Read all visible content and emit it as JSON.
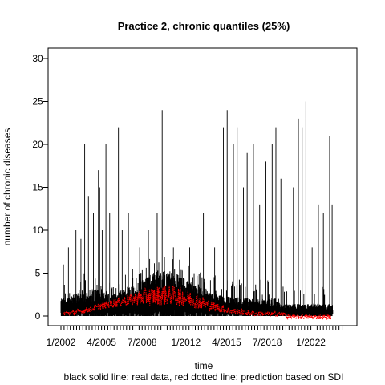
{
  "chart_data": {
    "type": "line",
    "title": "Practice 2, chronic quantiles (25%)",
    "xlabel": "time",
    "ylabel": "number of chronic diseases",
    "caption": "black solid line: real data, red dotted line: prediction based on SDI",
    "ylim": [
      0,
      30
    ],
    "yticks": [
      0,
      5,
      10,
      15,
      20,
      25,
      30
    ],
    "xlim": [
      2002.0,
      2024.5
    ],
    "xtick_labels": [
      {
        "x": 2002.0,
        "label": "1/2002"
      },
      {
        "x": 2005.25,
        "label": "4/2005"
      },
      {
        "x": 2008.5,
        "label": "7/2008"
      },
      {
        "x": 2012.0,
        "label": "1/2012"
      },
      {
        "x": 2015.25,
        "label": "4/2015"
      },
      {
        "x": 2018.5,
        "label": "7/2018"
      },
      {
        "x": 2022.0,
        "label": "1/2022"
      }
    ],
    "spikes": [
      [
        2002.2,
        6
      ],
      [
        2002.6,
        8
      ],
      [
        2002.8,
        12
      ],
      [
        2003.2,
        10
      ],
      [
        2003.6,
        9
      ],
      [
        2003.9,
        20
      ],
      [
        2004.2,
        14
      ],
      [
        2004.6,
        12
      ],
      [
        2005.0,
        17
      ],
      [
        2005.1,
        15
      ],
      [
        2005.3,
        10
      ],
      [
        2005.6,
        20
      ],
      [
        2005.9,
        12
      ],
      [
        2006.6,
        22
      ],
      [
        2006.9,
        10
      ],
      [
        2007.4,
        12
      ],
      [
        2008.3,
        8
      ],
      [
        2009.0,
        10
      ],
      [
        2009.7,
        12
      ],
      [
        2010.1,
        24
      ],
      [
        2011.0,
        8
      ],
      [
        2012.3,
        8
      ],
      [
        2013.4,
        12
      ],
      [
        2014.3,
        8
      ],
      [
        2015.0,
        22
      ],
      [
        2015.3,
        24
      ],
      [
        2015.8,
        20
      ],
      [
        2016.1,
        22
      ],
      [
        2016.6,
        15
      ],
      [
        2016.9,
        19
      ],
      [
        2017.4,
        20
      ],
      [
        2017.9,
        13
      ],
      [
        2018.4,
        18
      ],
      [
        2018.9,
        20
      ],
      [
        2019.2,
        22
      ],
      [
        2019.6,
        16
      ],
      [
        2020.0,
        10
      ],
      [
        2020.6,
        15
      ],
      [
        2021.0,
        23
      ],
      [
        2021.3,
        22
      ],
      [
        2021.6,
        25
      ],
      [
        2022.1,
        8
      ],
      [
        2022.6,
        13
      ],
      [
        2023.0,
        12
      ],
      [
        2023.5,
        21
      ],
      [
        2023.7,
        13
      ]
    ],
    "series": [
      {
        "name": "real data",
        "style": "solid",
        "color": "#000000"
      },
      {
        "name": "prediction based on SDI",
        "style": "dotted",
        "color": "#ff0000"
      }
    ]
  }
}
